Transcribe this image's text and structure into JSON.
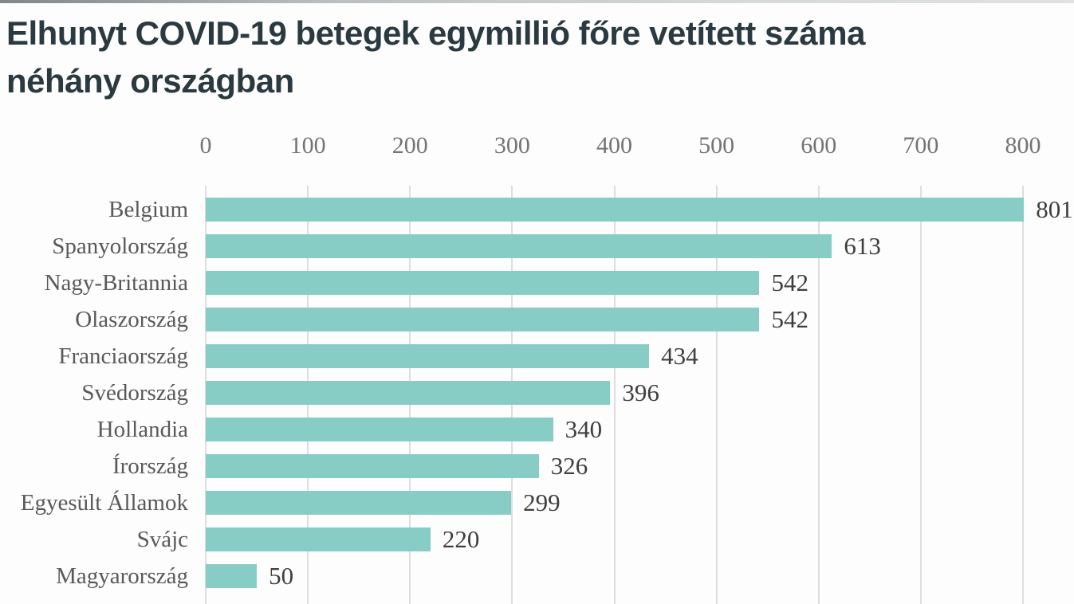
{
  "title": "Elhunyt COVID-19 betegek egymillió főre vetített száma néhány országban",
  "chart_data": {
    "type": "bar",
    "orientation": "horizontal",
    "title": "Elhunyt COVID-19 betegek egymillió főre vetített száma néhány országban",
    "categories": [
      "Belgium",
      "Spanyolország",
      "Nagy-Britannia",
      "Olaszország",
      "Franciaország",
      "Svédország",
      "Hollandia",
      "Írország",
      "Egyesült Államok",
      "Svájc",
      "Magyarország"
    ],
    "values": [
      801,
      613,
      542,
      542,
      434,
      396,
      340,
      326,
      299,
      220,
      50
    ],
    "value_labels": [
      "801",
      "613",
      "542",
      "542",
      "434",
      "396",
      "340",
      "326",
      "299",
      "220",
      "50"
    ],
    "xlabel": "",
    "ylabel": "",
    "xlim": [
      0,
      800
    ],
    "x_ticks": [
      0,
      100,
      200,
      300,
      400,
      500,
      600,
      700,
      800
    ],
    "grid": "vertical-only",
    "legend": "none",
    "bar_color": "#87cdc5",
    "gridline_color": "#dedede",
    "title_color": "#2b3a40",
    "label_color": "#595959",
    "value_color": "#3e3e3e",
    "tick_color": "#747474"
  }
}
